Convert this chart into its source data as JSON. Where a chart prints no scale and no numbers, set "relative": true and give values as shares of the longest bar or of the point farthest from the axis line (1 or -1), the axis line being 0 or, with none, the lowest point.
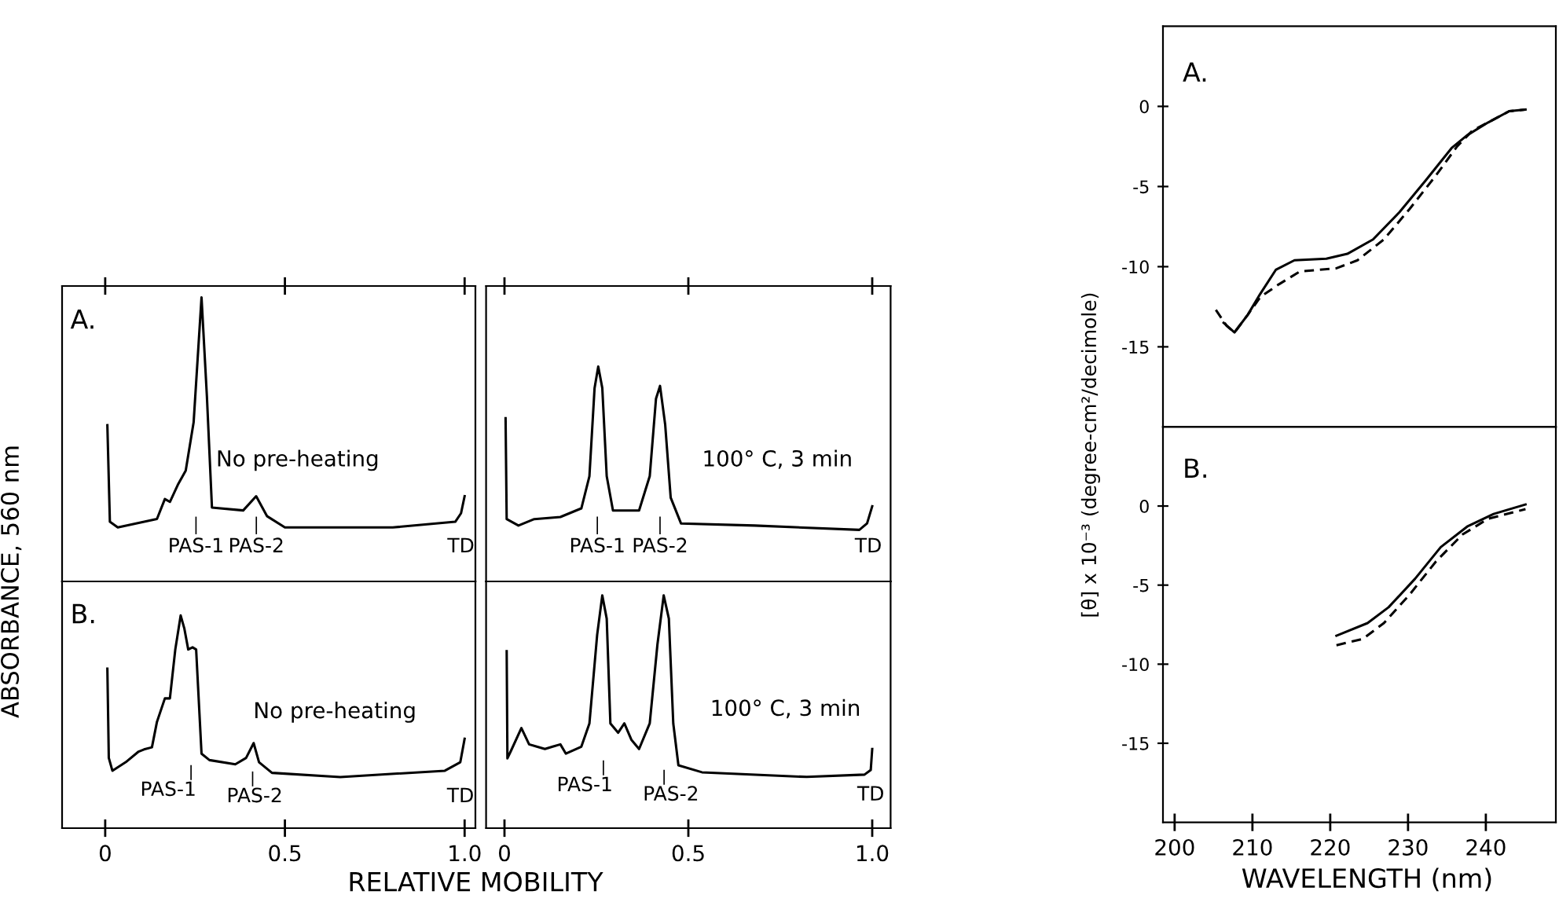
{
  "chart_data": [
    {
      "type": "line",
      "relative": true,
      "xlim": [
        -0.12,
        1.03
      ],
      "xticks": [
        {
          "value": 0,
          "label": null
        },
        {
          "value": 0.5,
          "label": null
        },
        {
          "value": 1,
          "label": null
        }
      ],
      "tick_labels": false,
      "series": [
        {
          "color": "#000000",
          "x": [
            0.006,
            0.013,
            0.035,
            0.144,
            0.166,
            0.18,
            0.202,
            0.224,
            0.246,
            0.268,
            0.283,
            0.297,
            0.384,
            0.42,
            0.45,
            0.5,
            0.8,
            0.974,
            0.99,
            1.0
          ],
          "values": [
            0.55,
            0.21,
            0.19,
            0.22,
            0.29,
            0.28,
            0.34,
            0.39,
            0.56,
            1.0,
            0.65,
            0.26,
            0.25,
            0.3,
            0.23,
            0.19,
            0.19,
            0.21,
            0.24,
            0.3
          ]
        }
      ],
      "annotations": [
        "A.",
        "No pre-heating",
        "PAS-1",
        "PAS-2",
        "TD"
      ]
    },
    {
      "type": "line",
      "relative": true,
      "xlim": [
        -0.05,
        1.05
      ],
      "xticks": [
        {
          "value": 0,
          "label": null
        },
        {
          "value": 0.5,
          "label": null
        },
        {
          "value": 1,
          "label": null
        }
      ],
      "tick_labels": false,
      "series": [
        {
          "color": "#000000",
          "x": [
            0.003,
            0.006,
            0.038,
            0.081,
            0.152,
            0.209,
            0.231,
            0.245,
            0.255,
            0.266,
            0.278,
            0.295,
            0.366,
            0.395,
            0.412,
            0.423,
            0.437,
            0.452,
            0.48,
            0.68,
            0.965,
            0.986,
            1.0
          ],
          "values": [
            0.76,
            0.29,
            0.26,
            0.29,
            0.3,
            0.34,
            0.49,
            0.9,
            1.0,
            0.9,
            0.49,
            0.33,
            0.33,
            0.49,
            0.85,
            0.91,
            0.73,
            0.39,
            0.27,
            0.26,
            0.24,
            0.27,
            0.35
          ]
        }
      ],
      "annotations": [
        "100° C, 3 min",
        "PAS-1",
        "PAS-2",
        "TD"
      ]
    },
    {
      "type": "line",
      "relative": true,
      "xlim": [
        -0.12,
        1.03
      ],
      "xticks": [
        0,
        0.5,
        {
          "value": 1,
          "label": "1.0"
        }
      ],
      "tick_labels": "x",
      "xlabel": "RELATIVE MOBILITY",
      "ylabel": "ABSORBANCE, 560 nm",
      "series": [
        {
          "color": "#000000",
          "x": [
            0.006,
            0.01,
            0.02,
            0.057,
            0.093,
            0.108,
            0.13,
            0.144,
            0.166,
            0.18,
            0.195,
            0.21,
            0.22,
            0.231,
            0.243,
            0.253,
            0.268,
            0.29,
            0.362,
            0.392,
            0.413,
            0.428,
            0.464,
            0.654,
            0.945,
            0.988,
            1.0
          ],
          "values": [
            0.75,
            0.33,
            0.27,
            0.31,
            0.36,
            0.37,
            0.38,
            0.5,
            0.61,
            0.61,
            0.84,
            1.0,
            0.94,
            0.84,
            0.85,
            0.84,
            0.35,
            0.32,
            0.3,
            0.33,
            0.4,
            0.31,
            0.26,
            0.24,
            0.27,
            0.31,
            0.42
          ]
        }
      ],
      "annotations": [
        "B.",
        "No pre-heating",
        "PAS-1",
        "PAS-2",
        "TD"
      ]
    },
    {
      "type": "line",
      "relative": true,
      "xlim": [
        -0.05,
        1.05
      ],
      "xticks": [
        0,
        0.5,
        {
          "value": 1,
          "label": "1.0"
        }
      ],
      "tick_labels": "x",
      "series": [
        {
          "color": "#000000",
          "x": [
            0.006,
            0.008,
            0.017,
            0.046,
            0.067,
            0.088,
            0.11,
            0.131,
            0.152,
            0.167,
            0.209,
            0.231,
            0.252,
            0.266,
            0.278,
            0.288,
            0.309,
            0.326,
            0.345,
            0.366,
            0.395,
            0.416,
            0.433,
            0.447,
            0.459,
            0.473,
            0.537,
            0.822,
            0.979,
            0.996,
            1.0
          ],
          "values": [
            0.76,
            0.3,
            0.33,
            0.43,
            0.36,
            0.35,
            0.34,
            0.35,
            0.36,
            0.32,
            0.35,
            0.45,
            0.83,
            1.0,
            0.9,
            0.45,
            0.41,
            0.45,
            0.38,
            0.34,
            0.45,
            0.79,
            1.0,
            0.9,
            0.45,
            0.27,
            0.24,
            0.22,
            0.23,
            0.25,
            0.34
          ]
        }
      ],
      "annotations": [
        "100° C, 3 min",
        "PAS-1",
        "PAS-2",
        "TD"
      ]
    },
    {
      "type": "line",
      "xlim": [
        198.5,
        249
      ],
      "xticks": [
        200,
        210,
        220,
        230,
        240
      ],
      "ylim": [
        -20,
        5
      ],
      "yticks": [
        0,
        {
          "value": -5,
          "label": "-5"
        },
        {
          "value": -10,
          "label": "-10"
        },
        {
          "value": -15,
          "label": "-15"
        }
      ],
      "tick_labels": "y",
      "ylabel": "[θ] x 10⁻³ (degree-cm²/decimole)",
      "series": [
        {
          "color": "#000000",
          "line_style": "solid",
          "x": [
            206.3,
            207.7,
            209.4,
            211.0,
            213.0,
            215.4,
            219.5,
            222.2,
            225.5,
            228.9,
            232.3,
            235.6,
            237.6,
            240.3,
            243.0,
            245.1
          ],
          "values": [
            -13.5,
            -14.1,
            -13.0,
            -11.7,
            -10.2,
            -9.6,
            -9.5,
            -9.2,
            -8.3,
            -6.6,
            -4.6,
            -2.6,
            -1.8,
            -1.0,
            -0.3,
            -0.2
          ]
        },
        {
          "color": "#000000",
          "line_style": "dashed",
          "x": [
            205.3,
            206.7,
            207.7,
            209.4,
            211.0,
            213.4,
            216.1,
            220.8,
            223.5,
            226.9,
            230.2,
            233.6,
            236.3,
            238.3,
            240.3,
            243.0,
            245.1
          ],
          "values": [
            -12.7,
            -13.7,
            -14.1,
            -13.0,
            -11.9,
            -11.1,
            -10.3,
            -10.1,
            -9.6,
            -8.3,
            -6.4,
            -4.3,
            -2.5,
            -1.5,
            -1.0,
            -0.3,
            -0.2
          ]
        }
      ],
      "annotations": [
        "A."
      ]
    },
    {
      "type": "line",
      "xlim": [
        198.5,
        249
      ],
      "xticks": [
        200,
        210,
        220,
        230,
        240
      ],
      "ylim": [
        -20,
        5
      ],
      "yticks": [
        0,
        {
          "value": -5,
          "label": "-5"
        },
        {
          "value": -10,
          "label": "-10"
        },
        {
          "value": -15,
          "label": "-15"
        }
      ],
      "xlabel": "WAVELENGTH (nm)",
      "series": [
        {
          "color": "#000000",
          "line_style": "solid",
          "x": [
            220.8,
            224.8,
            227.5,
            230.9,
            234.2,
            237.6,
            241.0,
            245.1
          ],
          "values": [
            -8.2,
            -7.4,
            -6.4,
            -4.6,
            -2.6,
            -1.3,
            -0.5,
            0.1
          ]
        },
        {
          "color": "#000000",
          "line_style": "dashed",
          "x": [
            220.8,
            224.2,
            226.9,
            230.2,
            233.6,
            237.0,
            240.3,
            245.1
          ],
          "values": [
            -8.8,
            -8.4,
            -7.4,
            -5.6,
            -3.5,
            -1.8,
            -0.8,
            -0.2
          ]
        }
      ],
      "annotations": [
        "B."
      ]
    }
  ]
}
